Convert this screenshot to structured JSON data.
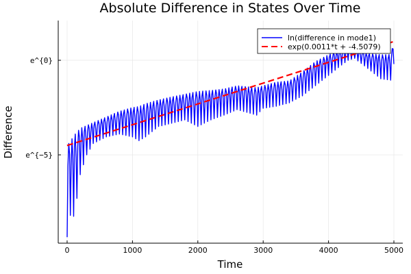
{
  "chart_data": {
    "type": "line",
    "title": "Absolute Difference in States Over Time",
    "xlabel": "Time",
    "ylabel": "Difference",
    "xlim": [
      -136,
      5136
    ],
    "ylim": [
      -9.67,
      2.1
    ],
    "x_ticks": [
      0,
      1000,
      2000,
      3000,
      4000,
      5000
    ],
    "x_tick_labels": [
      "0",
      "1000",
      "2000",
      "3000",
      "4000",
      "5000"
    ],
    "y_ticks": [
      0,
      -5
    ],
    "y_tick_labels": [
      "e^{0}",
      "e^{−5}"
    ],
    "y_scale_note": "",
    "grid": true,
    "legend_position": "top-right",
    "series": [
      {
        "name": "ln(difference in mode1)",
        "color": "#0000ff",
        "style": "solid-oscillating",
        "envelope": {
          "t": [
            0,
            50,
            100,
            150,
            200,
            300,
            400,
            600,
            800,
            1000,
            1100,
            1200,
            1400,
            1600,
            1800,
            2000,
            2200,
            2400,
            2600,
            2800,
            2900,
            3000,
            3200,
            3400,
            3600,
            3800,
            4000,
            4200,
            4300,
            4400,
            4600,
            4800,
            4950,
            5000
          ],
          "upper": [
            -4.5,
            -4.3,
            -4.0,
            -3.8,
            -3.6,
            -3.45,
            -3.3,
            -3.0,
            -2.7,
            -2.5,
            -2.45,
            -2.3,
            -2.1,
            -1.94,
            -1.8,
            -1.65,
            -1.6,
            -1.52,
            -1.35,
            -1.42,
            -1.45,
            -1.35,
            -1.16,
            -1.09,
            -0.62,
            -0.07,
            0.29,
            0.58,
            0.72,
            0.58,
            0.36,
            0.29,
            0.3,
            0.94
          ],
          "lower": [
            -9.35,
            -8.2,
            -8.25,
            -7.3,
            -6.05,
            -5.0,
            -4.4,
            -4.05,
            -3.9,
            -4.05,
            -4.25,
            -4.05,
            -3.5,
            -3.33,
            -3.15,
            -3.5,
            -3.15,
            -2.9,
            -2.61,
            -2.8,
            -2.9,
            -2.54,
            -2.43,
            -2.25,
            -1.88,
            -1.34,
            -0.8,
            -0.25,
            0.0,
            0.1,
            -0.43,
            -0.98,
            -1.05,
            -0.2
          ]
        }
      },
      {
        "name": "exp(0.0011*t + -4.5079)",
        "color": "#ff0000",
        "style": "dashed",
        "slope": 0.0011,
        "intercept": -4.5079,
        "t_range": [
          0,
          5000
        ]
      }
    ]
  }
}
